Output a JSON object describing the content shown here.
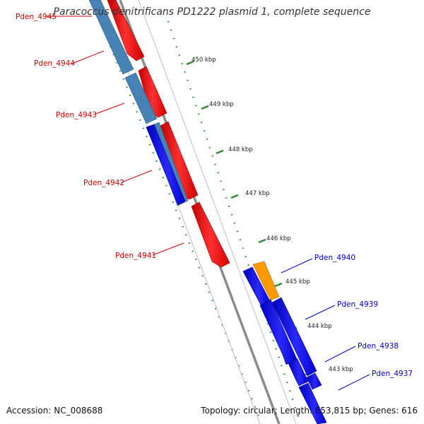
{
  "title": "Paracoccus denitrificans PD1222 plasmid 1, complete sequence",
  "footer": {
    "accession": "Accession: NC_008688",
    "summary": "Topology: circular; Length: 653,815 bp; Genes: 616"
  },
  "colors": {
    "backbone": "#8c8c8c",
    "tick": "#2e8b2e",
    "forward_gene": "#e00000",
    "reverse_gene": "#0000e0",
    "steel_gene": "#4682b4",
    "orange_gene": "#ff9900",
    "forward_label": "#cc0000",
    "reverse_label": "#0000cc"
  },
  "scale_labels": [
    "450 kbp",
    "449 kbp",
    "448 kbp",
    "447 kbp",
    "446 kbp",
    "445 kbp",
    "444 kbp",
    "443 kbp"
  ],
  "gene_labels": {
    "left": [
      "Pden_4945",
      "Pden_4944",
      "Pden_4943",
      "Pden_4942",
      "Pden_4941"
    ],
    "right": [
      "Pden_4940",
      "Pden_4939",
      "Pden_4938",
      "Pden_4937"
    ]
  }
}
